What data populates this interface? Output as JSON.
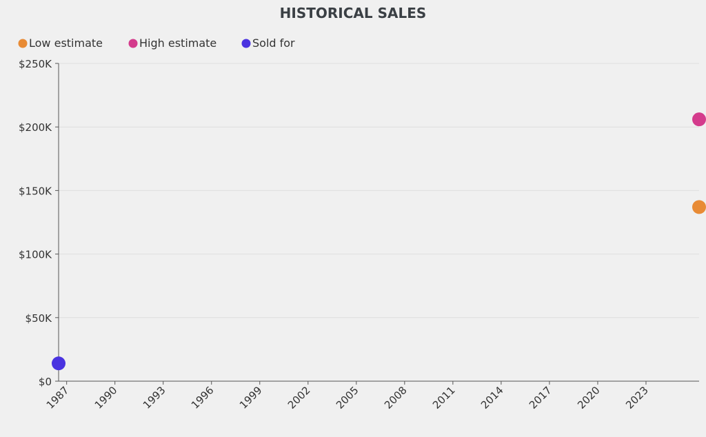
{
  "chart_data": {
    "type": "scatter",
    "title": "HISTORICAL SALES",
    "xlabel": "",
    "ylabel": "",
    "xlim": [
      1986.5,
      2026.3
    ],
    "ylim": [
      0,
      250000
    ],
    "grid": true,
    "legend_position": "top-left",
    "x_ticks": [
      "1987",
      "1990",
      "1993",
      "1996",
      "1999",
      "2002",
      "2005",
      "2008",
      "2011",
      "2014",
      "2017",
      "2020",
      "2023"
    ],
    "y_ticks": [
      "$0",
      "$50K",
      "$100K",
      "$150K",
      "$200K",
      "$250K"
    ],
    "series": [
      {
        "name": "Low estimate",
        "color": "#e88b35",
        "points": [
          {
            "x": 2026.3,
            "y": 137000
          }
        ]
      },
      {
        "name": "High estimate",
        "color": "#d43b8c",
        "points": [
          {
            "x": 2026.3,
            "y": 206000
          }
        ]
      },
      {
        "name": "Sold for",
        "color": "#4a33e0",
        "points": [
          {
            "x": 1986.5,
            "y": 14000
          }
        ]
      }
    ]
  }
}
